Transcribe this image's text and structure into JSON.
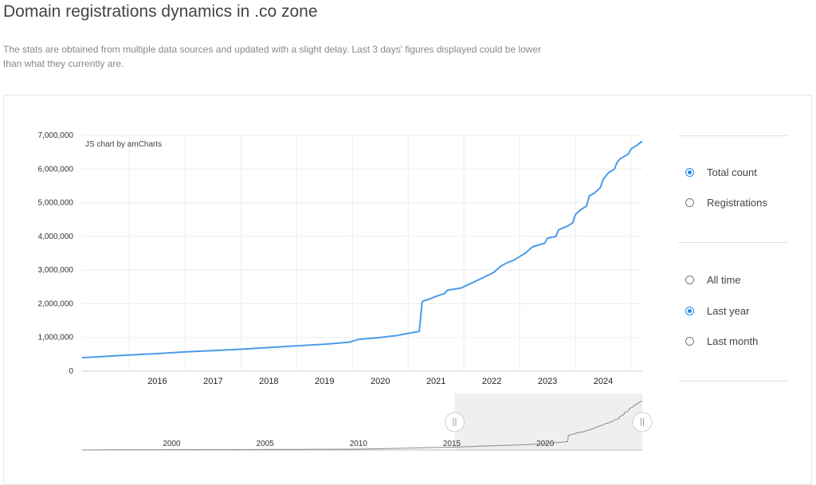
{
  "page": {
    "title": "Domain registrations dynamics in .co zone",
    "description": "The stats are obtained from multiple data sources and updated with a slight delay. Last 3 days' figures displayed could be lower than what they currently are."
  },
  "chart": {
    "credit": "JS chart by amCharts",
    "line_color": "#4c9be8"
  },
  "chart_data": {
    "type": "line",
    "series": [
      {
        "name": "Total count",
        "x": [
          2015.15,
          2015.5,
          2016.0,
          2016.5,
          2017.0,
          2017.5,
          2018.0,
          2018.5,
          2019.0,
          2019.5,
          2019.95,
          2020.1,
          2020.5,
          2020.8,
          2021.0,
          2021.2,
          2021.25,
          2021.27,
          2021.4,
          2021.5,
          2021.65,
          2021.7,
          2021.95,
          2022.05,
          2022.25,
          2022.35,
          2022.5,
          2022.55,
          2022.65,
          2022.75,
          2022.9,
          2023.0,
          2023.1,
          2023.2,
          2023.25,
          2023.45,
          2023.5,
          2023.65,
          2023.7,
          2023.85,
          2023.95,
          2024.0,
          2024.1,
          2024.2,
          2024.25,
          2024.35,
          2024.45,
          2024.5,
          2024.55,
          2024.6,
          2024.7,
          2024.75,
          2024.8,
          2024.9,
          2024.95,
          2025.0,
          2025.1,
          2025.2
        ],
        "y": [
          400000,
          430000,
          480000,
          520000,
          570000,
          610000,
          650000,
          700000,
          750000,
          800000,
          860000,
          940000,
          1000000,
          1060000,
          1120000,
          1180000,
          2050000,
          2080000,
          2150000,
          2220000,
          2300000,
          2400000,
          2470000,
          2550000,
          2700000,
          2780000,
          2900000,
          2950000,
          3100000,
          3200000,
          3300000,
          3400000,
          3500000,
          3650000,
          3700000,
          3800000,
          3950000,
          4000000,
          4200000,
          4300000,
          4400000,
          4650000,
          4800000,
          4900000,
          5200000,
          5300000,
          5450000,
          5700000,
          5800000,
          5900000,
          6000000,
          6200000,
          6300000,
          6400000,
          6450000,
          6600000,
          6700000,
          6830000
        ]
      }
    ],
    "yticks": [
      "7,000,000",
      "6,000,000",
      "5,000,000",
      "4,000,000",
      "3,000,000",
      "2,000,000",
      "1,000,000",
      "0"
    ],
    "ylim": [
      0,
      7000000
    ],
    "xticks": [
      "2016",
      "2017",
      "2018",
      "2019",
      "2020",
      "2021",
      "2022",
      "2023",
      "2024"
    ],
    "xlim": [
      2015.15,
      2025.2
    ],
    "grid": true,
    "scrollbar": {
      "xticks": [
        "2000",
        "2005",
        "2010",
        "2015",
        "2020"
      ],
      "xlim": [
        1995.2,
        2025.2
      ],
      "selected_range": [
        2015.15,
        2025.2
      ]
    }
  },
  "controls": {
    "metric_options": [
      {
        "label": "Total count",
        "checked": true
      },
      {
        "label": "Registrations",
        "checked": false
      }
    ],
    "period_options": [
      {
        "label": "All time",
        "checked": false
      },
      {
        "label": "Last year",
        "checked": true
      },
      {
        "label": "Last month",
        "checked": false
      }
    ]
  }
}
